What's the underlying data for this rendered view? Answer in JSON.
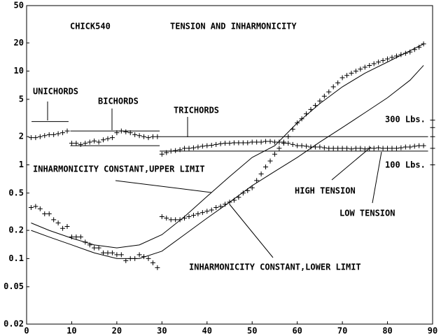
{
  "chart_data": {
    "type": "scatter",
    "title": "TENSION AND INHARMONICITY",
    "subtitle": "CHICK540",
    "log_y": true,
    "xlim": [
      0,
      90
    ],
    "xticks": [
      0,
      10,
      20,
      30,
      40,
      50,
      60,
      70,
      80,
      90
    ],
    "ylim": [
      0.02,
      50
    ],
    "yticks": [
      0.02,
      0.05,
      0.1,
      0.2,
      0.5,
      1,
      2,
      5,
      10,
      20,
      50
    ],
    "series": [
      {
        "style": "marker",
        "color": "#000000",
        "x": [
          1,
          2,
          3,
          4,
          5,
          6,
          7,
          8,
          9,
          10,
          11,
          12,
          13,
          14,
          15,
          16,
          17,
          18,
          19,
          20,
          21,
          22,
          23,
          24,
          25,
          26,
          27,
          28,
          29,
          30,
          31,
          32,
          33,
          34,
          35,
          36,
          37,
          38,
          39,
          40,
          41,
          42,
          43,
          44,
          45,
          46,
          47,
          48,
          49,
          50,
          51,
          52,
          53,
          54,
          55,
          56,
          57,
          58,
          59,
          60,
          61,
          62,
          63,
          64,
          65,
          66,
          67,
          68,
          69,
          70,
          71,
          72,
          73,
          74,
          75,
          76,
          77,
          78,
          79,
          80,
          81,
          82,
          83,
          84,
          85,
          86,
          87,
          88
        ],
        "values": [
          1.95,
          1.95,
          2.0,
          2.05,
          2.1,
          2.1,
          2.15,
          2.2,
          2.3,
          1.7,
          1.7,
          1.65,
          1.7,
          1.75,
          1.8,
          1.75,
          1.85,
          1.9,
          1.95,
          2.2,
          2.3,
          2.25,
          2.2,
          2.1,
          2.05,
          2.0,
          1.95,
          2.0,
          2.0,
          1.3,
          1.35,
          1.4,
          1.42,
          1.45,
          1.5,
          1.5,
          1.52,
          1.55,
          1.58,
          1.6,
          1.62,
          1.65,
          1.68,
          1.7,
          1.7,
          1.72,
          1.72,
          1.72,
          1.72,
          1.75,
          1.75,
          1.75,
          1.78,
          1.78,
          1.75,
          1.75,
          1.7,
          1.7,
          1.65,
          1.6,
          1.6,
          1.58,
          1.55,
          1.55,
          1.55,
          1.52,
          1.5,
          1.5,
          1.5,
          1.5,
          1.5,
          1.48,
          1.5,
          1.5,
          1.48,
          1.5,
          1.5,
          1.52,
          1.5,
          1.5,
          1.5,
          1.5,
          1.52,
          1.55,
          1.55,
          1.58,
          1.6,
          1.6
        ]
      },
      {
        "style": "marker",
        "color": "#000000",
        "x": [
          1,
          2,
          3,
          4,
          5,
          6,
          7,
          8,
          9,
          10,
          11,
          12,
          13,
          14,
          15,
          16,
          17,
          18,
          19,
          20,
          21,
          22,
          23,
          24,
          25,
          26,
          27,
          28,
          29,
          30,
          31,
          32,
          33,
          34,
          35,
          36,
          37,
          38,
          39,
          40,
          41,
          42,
          43,
          44,
          45,
          46,
          47,
          48,
          49,
          50,
          51,
          52,
          53,
          54,
          55,
          56,
          57,
          58,
          59,
          60,
          61,
          62,
          63,
          64,
          65,
          66,
          67,
          68,
          69,
          70,
          71,
          72,
          73,
          74,
          75,
          76,
          77,
          78,
          79,
          80,
          81,
          82,
          83,
          84,
          85,
          86,
          87,
          88
        ],
        "values": [
          0.35,
          0.36,
          0.34,
          0.3,
          0.3,
          0.26,
          0.24,
          0.21,
          0.22,
          0.17,
          0.17,
          0.17,
          0.15,
          0.14,
          0.13,
          0.13,
          0.115,
          0.115,
          0.115,
          0.11,
          0.11,
          0.095,
          0.1,
          0.1,
          0.11,
          0.105,
          0.1,
          0.09,
          0.08,
          0.28,
          0.27,
          0.26,
          0.26,
          0.26,
          0.27,
          0.28,
          0.29,
          0.3,
          0.31,
          0.32,
          0.33,
          0.35,
          0.36,
          0.38,
          0.4,
          0.42,
          0.45,
          0.5,
          0.53,
          0.57,
          0.68,
          0.8,
          0.95,
          1.1,
          1.3,
          1.5,
          1.75,
          2.0,
          2.4,
          2.8,
          3.1,
          3.5,
          3.9,
          4.3,
          4.8,
          5.4,
          6.0,
          6.8,
          7.5,
          8.5,
          9.0,
          9.5,
          10,
          10.5,
          11,
          11.5,
          12,
          12.5,
          13,
          13.5,
          14,
          14.5,
          15,
          15.5,
          16,
          17,
          18,
          19.5
        ]
      },
      {
        "style": "line",
        "color": "#000000",
        "x": [
          1,
          5,
          10,
          15,
          20,
          25,
          30,
          35,
          40,
          45,
          50,
          55,
          60,
          65,
          70,
          75,
          80,
          85,
          88
        ],
        "values": [
          0.24,
          0.2,
          0.165,
          0.14,
          0.13,
          0.14,
          0.18,
          0.28,
          0.46,
          0.75,
          1.2,
          1.6,
          2.8,
          4.5,
          6.8,
          9.5,
          12.5,
          16.5,
          19.5
        ]
      },
      {
        "style": "line",
        "color": "#000000",
        "x": [
          1,
          5,
          10,
          15,
          20,
          25,
          30,
          35,
          40,
          45,
          50,
          55,
          60,
          65,
          70,
          75,
          80,
          85,
          88
        ],
        "values": [
          0.2,
          0.17,
          0.14,
          0.115,
          0.1,
          0.1,
          0.12,
          0.18,
          0.27,
          0.4,
          0.6,
          0.85,
          1.2,
          1.75,
          2.5,
          3.6,
          5.2,
          8.0,
          11.5
        ]
      }
    ],
    "reference_lines": [
      {
        "x": [
          1.1,
          9.3
        ],
        "y": 2.9
      },
      {
        "x": [
          9.7,
          29.5
        ],
        "y": 2.3
      },
      {
        "x": [
          9.7,
          29.5
        ],
        "y": 1.6
      },
      {
        "x": [
          29.5,
          89
        ],
        "y": 2.0
      },
      {
        "x": [
          29.5,
          89
        ],
        "y": 1.4
      }
    ],
    "edge_marks": {
      "x": 90,
      "values": [
        3,
        2.5,
        2,
        1.5,
        1
      ]
    },
    "annotations": [
      {
        "text": "UNICHORDS"
      },
      {
        "text": "BICHORDS"
      },
      {
        "text": "TRICHORDS"
      },
      {
        "text": "300 Lbs."
      },
      {
        "text": "100 Lbs."
      },
      {
        "text": "INHARMONICITY CONSTANT,UPPER LIMIT"
      },
      {
        "text": "HIGH TENSION"
      },
      {
        "text": "LOW TENSION"
      },
      {
        "text": "INHARMONICITY CONSTANT,LOWER LIMIT"
      }
    ]
  }
}
